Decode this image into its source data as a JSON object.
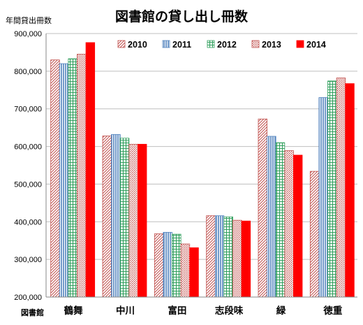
{
  "chart_data": {
    "type": "bar",
    "title": "図書館の貸し出し冊数",
    "ylabel": "年間貸出冊数",
    "xlabel": "図書館",
    "ylim": [
      200000,
      900000
    ],
    "ytick_step": 100000,
    "yticks": [
      "200,000",
      "300,000",
      "400,000",
      "500,000",
      "600,000",
      "700,000",
      "800,000",
      "900,000"
    ],
    "grid": true,
    "legend_position": "top",
    "categories": [
      "鶴舞",
      "中川",
      "富田",
      "志段味",
      "緑",
      "徳重"
    ],
    "series": [
      {
        "name": "2010",
        "pattern": "diagonal-hatch",
        "color": "#c0504d",
        "values": [
          830000,
          628000,
          368000,
          416000,
          673000,
          534000
        ]
      },
      {
        "name": "2011",
        "pattern": "vertical-lines",
        "color": "#4f81bd",
        "values": [
          820000,
          632000,
          372000,
          416000,
          627000,
          730000
        ]
      },
      {
        "name": "2012",
        "pattern": "grid",
        "color": "#2e9e5b",
        "values": [
          833000,
          622000,
          367000,
          413000,
          610000,
          774000
        ]
      },
      {
        "name": "2013",
        "pattern": "dots",
        "color": "#c0504d",
        "values": [
          845000,
          606000,
          341000,
          404000,
          589000,
          782000
        ]
      },
      {
        "name": "2014",
        "pattern": "solid",
        "color": "#ff0000",
        "values": [
          876000,
          606000,
          331000,
          402000,
          577000,
          767000
        ]
      }
    ]
  }
}
